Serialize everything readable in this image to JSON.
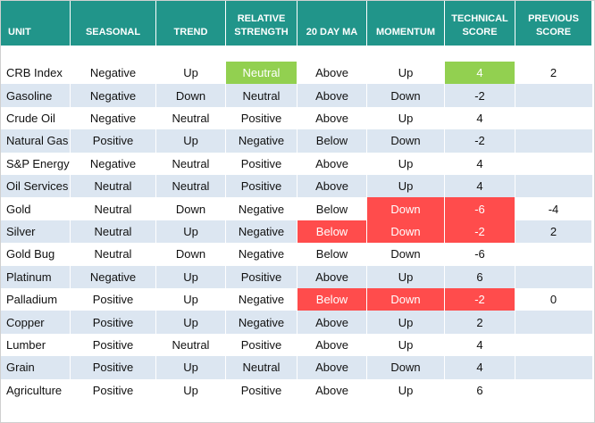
{
  "table": {
    "header": [
      "UNIT",
      "SEASONAL",
      "TREND",
      "RELATIVE STRENGTH",
      "20 DAY MA",
      "MOMENTUM",
      "TECHNICAL SCORE",
      "PREVIOUS SCORE"
    ],
    "rows": [
      [
        "CRB Index",
        "Negative",
        "Up",
        {
          "text": "Neutral",
          "fill": "#92d050"
        },
        "Above",
        "Up",
        {
          "text": "4",
          "fill": "#92d050"
        },
        "2"
      ],
      [
        "Gasoline",
        "Negative",
        "Down",
        "Neutral",
        "Above",
        "Down",
        "-2",
        null
      ],
      [
        "Crude Oil",
        "Negative",
        "Neutral",
        "Positive",
        "Above",
        "Up",
        "4",
        null
      ],
      [
        "Natural Gas",
        "Positive",
        "Up",
        "Negative",
        "Below",
        "Down",
        "-2",
        null
      ],
      [
        "S&P Energy",
        "Negative",
        "Neutral",
        "Positive",
        "Above",
        "Up",
        "4",
        null
      ],
      [
        "Oil Services",
        "Neutral",
        "Neutral",
        "Positive",
        "Above",
        "Up",
        "4",
        null
      ],
      [
        "Gold",
        "Neutral",
        "Down",
        "Negative",
        "Below",
        {
          "text": "Down",
          "fill": "#ff4c4c"
        },
        {
          "text": "-6",
          "fill": "#ff4c4c"
        },
        "-4"
      ],
      [
        "Silver",
        "Neutral",
        "Up",
        "Negative",
        {
          "text": "Below",
          "fill": "#ff4c4c"
        },
        {
          "text": "Down",
          "fill": "#ff4c4c"
        },
        {
          "text": "-2",
          "fill": "#ff4c4c"
        },
        "2"
      ],
      [
        "Gold Bug",
        "Neutral",
        "Down",
        "Negative",
        "Below",
        "Down",
        "-6",
        null
      ],
      [
        "Platinum",
        "Negative",
        "Up",
        "Positive",
        "Above",
        "Up",
        "6",
        null
      ],
      [
        "Palladium",
        "Positive",
        "Up",
        "Negative",
        {
          "text": "Below",
          "fill": "#ff4c4c"
        },
        {
          "text": "Down",
          "fill": "#ff4c4c"
        },
        {
          "text": "-2",
          "fill": "#ff4c4c"
        },
        "0"
      ],
      [
        "Copper",
        "Positive",
        "Up",
        "Negative",
        "Above",
        "Up",
        "2",
        null
      ],
      [
        "Lumber",
        "Positive",
        "Neutral",
        "Positive",
        "Above",
        "Up",
        "4",
        null
      ],
      [
        "Grain",
        "Positive",
        "Up",
        "Neutral",
        "Above",
        "Down",
        "4",
        null
      ],
      [
        "Agriculture",
        "Positive",
        "Up",
        "Positive",
        "Above",
        "Up",
        "6",
        null
      ]
    ]
  }
}
